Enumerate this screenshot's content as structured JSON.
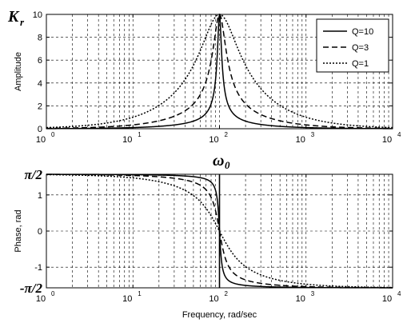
{
  "chart_data": [
    {
      "type": "line",
      "panel": "top",
      "corner_label": {
        "main": "K",
        "sub": "r"
      },
      "title": "",
      "xlabel": "",
      "ylabel": "Amplitude",
      "xscale": "log",
      "xlim": [
        1,
        10000
      ],
      "ylim": [
        0,
        10
      ],
      "xticks": [
        {
          "base": "10",
          "exp": "0",
          "value": 1
        },
        {
          "base": "10",
          "exp": "1",
          "value": 10
        },
        {
          "base": "10",
          "exp": "2",
          "value": 100
        },
        {
          "base": "10",
          "exp": "3",
          "value": 1000
        },
        {
          "base": "10",
          "exp": "4",
          "value": 10000
        }
      ],
      "yticks": [
        {
          "label": "0",
          "value": 0
        },
        {
          "label": "2",
          "value": 2
        },
        {
          "label": "4",
          "value": 4
        },
        {
          "label": "6",
          "value": 6
        },
        {
          "label": "8",
          "value": 8
        },
        {
          "label": "10",
          "value": 10
        }
      ],
      "grid": true,
      "legend_position": "top-right",
      "series": [
        {
          "name": "Q=10",
          "style": "solid",
          "Q": 10
        },
        {
          "name": "Q=3",
          "style": "dashed",
          "Q": 3
        },
        {
          "name": "Q=1",
          "style": "dotted",
          "Q": 1
        }
      ],
      "resonance_frequency": 100,
      "gain": 10,
      "function": "amplitude"
    },
    {
      "type": "line",
      "panel": "bottom",
      "top_label": "ω0",
      "title": "",
      "xlabel": "Frequency, rad/sec",
      "ylabel": "Phase, rad",
      "xscale": "log",
      "xlim": [
        1,
        10000
      ],
      "ylim": [
        -1.5708,
        1.5708
      ],
      "xticks": [
        {
          "base": "10",
          "exp": "0",
          "value": 1
        },
        {
          "base": "10",
          "exp": "1",
          "value": 10
        },
        {
          "base": "10",
          "exp": "2",
          "value": 100
        },
        {
          "base": "10",
          "exp": "3",
          "value": 1000
        },
        {
          "base": "10",
          "exp": "4",
          "value": 10000
        }
      ],
      "yticks": [
        {
          "label": "-π/2",
          "value": -1.5708,
          "emphasis": true
        },
        {
          "label": "-1",
          "value": -1
        },
        {
          "label": "0",
          "value": 0
        },
        {
          "label": "1",
          "value": 1
        },
        {
          "label": "π/2",
          "value": 1.5708,
          "emphasis": true
        }
      ],
      "grid": true,
      "series": [
        {
          "name": "Q=10",
          "style": "solid",
          "Q": 10
        },
        {
          "name": "Q=3",
          "style": "dashed",
          "Q": 3
        },
        {
          "name": "Q=1",
          "style": "dotted",
          "Q": 1
        }
      ],
      "resonance_frequency": 100,
      "function": "phase"
    }
  ]
}
